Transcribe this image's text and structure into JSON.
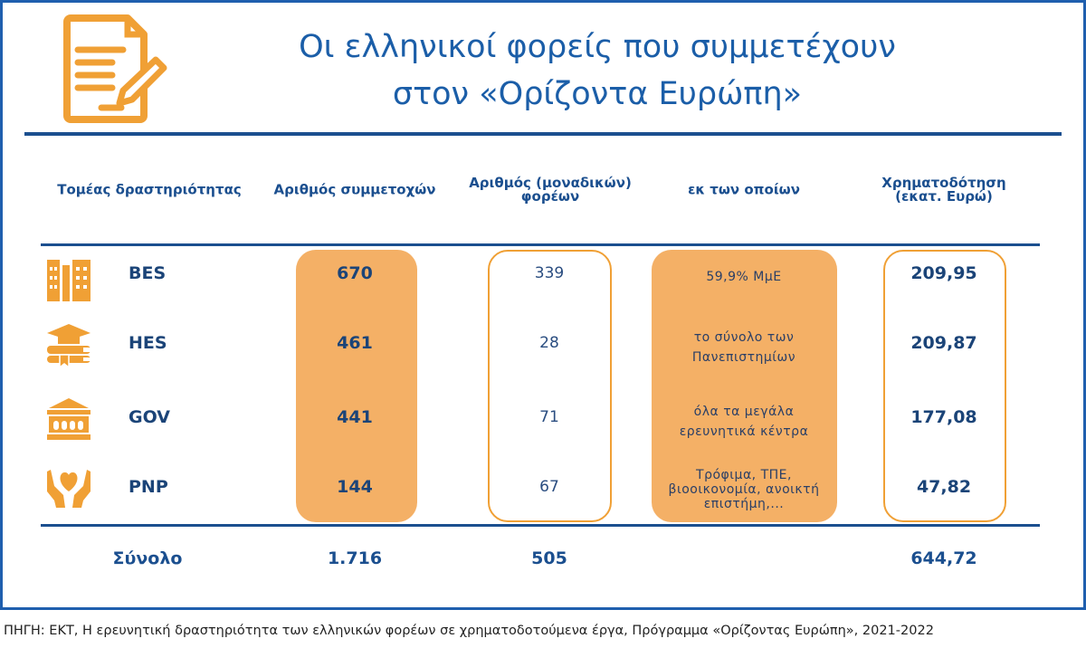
{
  "title": {
    "line1": "Οι ελληνικοί φορείς που συμμετέχουν",
    "line2": "στον «Ορίζοντα Ευρώπη»",
    "icon": "document-pen-icon"
  },
  "colors": {
    "title": "#1b5ea8",
    "accent": "#f0a035",
    "fill": "#f4b066",
    "rule": "#1b4f8f"
  },
  "headers": [
    "Τομέας δραστηριότητας",
    "Αριθμός συμμετοχών",
    "Αριθμός (μοναδικών) φορέων",
    "εκ των οποίων",
    "Χρηματοδότηση (εκατ. Ευρώ)"
  ],
  "header_lines": {
    "col3a": "Αριθμός (μοναδικών)",
    "col3b": "φορέων",
    "col5a": "Χρηματοδότηση",
    "col5b": "(εκατ. Ευρώ)"
  },
  "rows": [
    {
      "sector": "BES",
      "icon": "office-buildings-icon",
      "participations": "670",
      "entities": "339",
      "note1": "59,9% ΜμΕ",
      "note2": "",
      "note3": "",
      "funding": "209,95"
    },
    {
      "sector": "HES",
      "icon": "graduation-cap-books-icon",
      "participations": "461",
      "entities": "28",
      "note1": "το σύνολο των",
      "note2": "Πανεπιστημίων",
      "note3": "",
      "funding": "209,87"
    },
    {
      "sector": "GOV",
      "icon": "government-building-icon",
      "participations": "441",
      "entities": "71",
      "note1": "όλα τα μεγάλα",
      "note2": "ερευνητικά  κέντρα",
      "note3": "",
      "funding": "177,08"
    },
    {
      "sector": "PNP",
      "icon": "hands-heart-icon",
      "participations": "144",
      "entities": "67",
      "note1": "Τρόφιμα, ΤΠΕ,",
      "note2": "βιοοικονομία, ανοικτή",
      "note3": "επιστήμη,...",
      "funding": "47,82"
    }
  ],
  "totals": {
    "label": "Σύνολο",
    "participations": "1.716",
    "entities": "505",
    "funding": "644,72"
  },
  "footer": "ΠΗΓΗ: ΕΚΤ, Η ερευνητική δραστηριότητα των ελληνικών φορέων σε χρηματοδοτούμενα έργα, Πρόγραμμα «Ορίζοντας Ευρώπη», 2021-2022"
}
